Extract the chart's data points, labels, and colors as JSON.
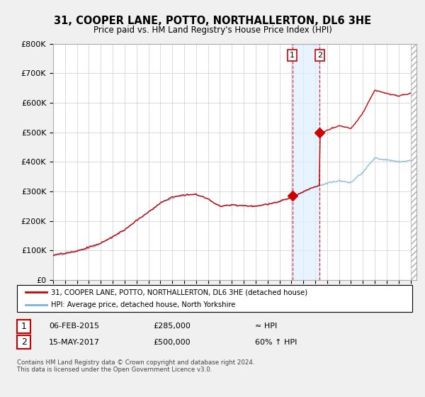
{
  "title": "31, COOPER LANE, POTTO, NORTHALLERTON, DL6 3HE",
  "subtitle": "Price paid vs. HM Land Registry's House Price Index (HPI)",
  "legend_line1": "31, COOPER LANE, POTTO, NORTHALLERTON, DL6 3HE (detached house)",
  "legend_line2": "HPI: Average price, detached house, North Yorkshire",
  "annotation1_date": "06-FEB-2015",
  "annotation1_price": "£285,000",
  "annotation1_hpi": "≈ HPI",
  "annotation2_date": "15-MAY-2017",
  "annotation2_price": "£500,000",
  "annotation2_hpi": "60% ↑ HPI",
  "footnote": "Contains HM Land Registry data © Crown copyright and database right 2024.\nThis data is licensed under the Open Government Licence v3.0.",
  "sale1_x": 2015.08,
  "sale1_y": 285000,
  "sale2_x": 2017.37,
  "sale2_y": 500000,
  "hpi_line_color": "#7ab5d9",
  "price_line_color": "#cc0000",
  "background_color": "#f0f0f0",
  "plot_bg_color": "#ffffff",
  "grid_color": "#cccccc",
  "annotation_box_color": "#ddeeff",
  "ylim": [
    0,
    800000
  ],
  "xlim_start": 1995,
  "xlim_end": 2025.5,
  "hatch_start": 2025.0
}
